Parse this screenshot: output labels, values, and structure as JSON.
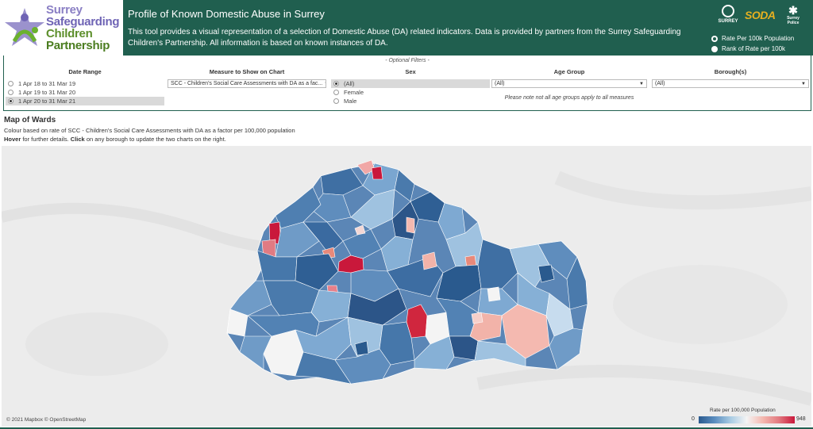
{
  "header": {
    "logo_lines": [
      "Surrey",
      "Safeguarding",
      "Children",
      "Partnership"
    ],
    "title": "Profile of Known Domestic Abuse in Surrey",
    "description": "This tool provides a visual representation of a selection of Domestic Abuse (DA) related indicators.  Data is provided by partners from the Surrey Safeguarding Children's Partnership.  All information is based on known instances of DA.",
    "partner_logos": {
      "surrey": "SURREY",
      "soda": "SODA",
      "police": "Surrey Police"
    },
    "view_options": [
      {
        "label": "Rate Per 100k Population",
        "selected": true
      },
      {
        "label": "Rank of Rate per 100k",
        "selected": false
      }
    ]
  },
  "filters": {
    "optional_label": "- Optional Filters -",
    "date_range": {
      "title": "Date Range",
      "options": [
        {
          "label": "1 Apr 18 to 31 Mar 19",
          "selected": false
        },
        {
          "label": "1 Apr 19 to 31 Mar 20",
          "selected": false
        },
        {
          "label": "1 Apr 20 to 31 Mar 21",
          "selected": true
        }
      ]
    },
    "measure": {
      "title": "Measure to Show on Chart",
      "value": "SCC - Children's Social Care Assessments with DA as a fac..."
    },
    "sex": {
      "title": "Sex",
      "options": [
        {
          "label": "(All)",
          "selected": true
        },
        {
          "label": "Female",
          "selected": false
        },
        {
          "label": "Male",
          "selected": false
        }
      ]
    },
    "age_group": {
      "title": "Age Group",
      "value": "(All)",
      "note": "Please note not all age groups apply to all measures"
    },
    "borough": {
      "title": "Borough(s)",
      "value": "(All)"
    }
  },
  "map": {
    "title": "Map of Wards",
    "subtitle": "Colour based on rate of SCC - Children's Social Care Assessments with DA as a factor per 100,000 population",
    "hover_word": "Hover",
    "hover_text": " for further details.  ",
    "click_word": "Click",
    "click_text": " on any borough to update the two charts on the right.",
    "attribution": "© 2021 Mapbox © OpenStreetMap",
    "legend": {
      "title": "Rate per 100,000 Population",
      "min": "0",
      "max": "948"
    }
  },
  "colors": {
    "header_bg": "#205f4f",
    "low": "#2a5a8e",
    "mid": "#f4f4f4",
    "high": "#c9183b"
  }
}
